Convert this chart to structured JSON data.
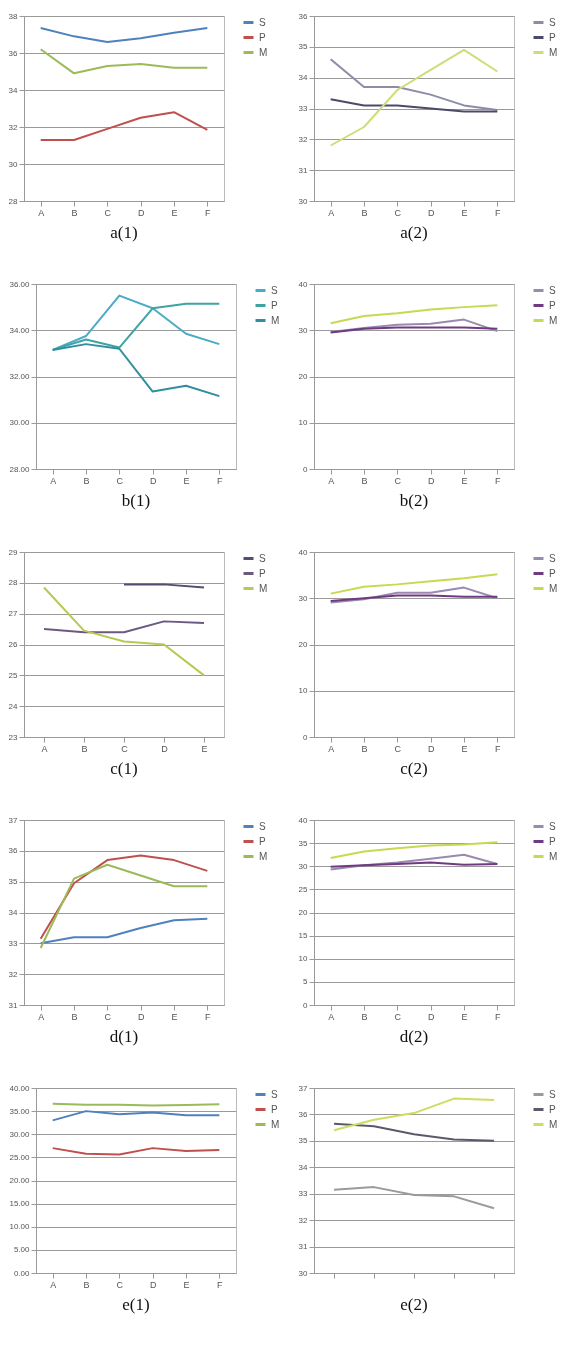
{
  "chart_data": [
    {
      "type": "line",
      "title": "a(1)",
      "categories": [
        "A",
        "B",
        "C",
        "D",
        "E",
        "F"
      ],
      "ylim": [
        28,
        38
      ],
      "yticks": [
        28,
        30,
        32,
        34,
        36,
        38
      ],
      "grid": "y",
      "legend": "right",
      "marker": "none",
      "series": [
        {
          "name": "S",
          "color": "#4f81bd",
          "values": [
            37.35,
            36.9,
            36.6,
            36.8,
            37.1,
            37.35
          ]
        },
        {
          "name": "P",
          "color": "#c0504d",
          "values": [
            31.3,
            31.3,
            31.9,
            32.5,
            32.8,
            31.85
          ]
        },
        {
          "name": "M",
          "color": "#9bbb59",
          "values": [
            36.2,
            34.9,
            35.3,
            35.4,
            35.2,
            35.2
          ]
        }
      ]
    },
    {
      "type": "line",
      "title": "a(2)",
      "categories": [
        "A",
        "B",
        "C",
        "D",
        "E",
        "F"
      ],
      "ylim": [
        30,
        36
      ],
      "yticks": [
        30,
        31,
        32,
        33,
        34,
        35,
        36
      ],
      "grid": "y",
      "legend": "right",
      "marker": "none",
      "series": [
        {
          "name": "S",
          "color": "#8c8ca8",
          "values": [
            34.6,
            33.7,
            33.7,
            33.45,
            33.1,
            32.95
          ]
        },
        {
          "name": "P",
          "color": "#4a4a6a",
          "values": [
            33.3,
            33.1,
            33.1,
            33.0,
            32.9,
            32.9
          ]
        },
        {
          "name": "M",
          "color": "#d0dc78",
          "values": [
            31.8,
            32.4,
            33.6,
            34.25,
            34.9,
            34.2
          ]
        }
      ]
    },
    {
      "type": "line",
      "title": "b(1)",
      "categories": [
        "A",
        "B",
        "C",
        "D",
        "E",
        "F"
      ],
      "ylim": [
        28,
        36
      ],
      "yticks": [
        {
          "value": 28,
          "label": "28.00"
        },
        {
          "value": 30,
          "label": "30.00"
        },
        {
          "value": 32,
          "label": "32.00"
        },
        {
          "value": 34,
          "label": "34.00"
        },
        {
          "value": 36,
          "label": "36.00"
        }
      ],
      "grid": "y",
      "legend": "right",
      "marker": "none",
      "series": [
        {
          "name": "S",
          "color": "#4bacc6",
          "values": [
            33.15,
            33.75,
            35.5,
            34.95,
            33.85,
            33.4
          ]
        },
        {
          "name": "P",
          "color": "#3fa3a3",
          "values": [
            33.15,
            33.6,
            33.25,
            34.95,
            35.15,
            35.15
          ]
        },
        {
          "name": "M",
          "color": "#2f8f9f",
          "values": [
            33.15,
            33.4,
            33.2,
            31.35,
            31.6,
            31.15
          ]
        }
      ]
    },
    {
      "type": "line",
      "title": "b(2)",
      "categories": [
        "A",
        "B",
        "C",
        "D",
        "E",
        "F"
      ],
      "ylim": [
        0,
        40
      ],
      "yticks": [
        0,
        10,
        20,
        30,
        40
      ],
      "grid": "y",
      "legend": "right",
      "marker": "none",
      "series": [
        {
          "name": "S",
          "color": "#9a8ab0",
          "values": [
            29.6,
            30.5,
            31.2,
            31.4,
            32.3,
            29.8
          ]
        },
        {
          "name": "P",
          "color": "#703a80",
          "values": [
            29.5,
            30.3,
            30.6,
            30.6,
            30.6,
            30.3
          ]
        },
        {
          "name": "M",
          "color": "#c8d850",
          "values": [
            31.5,
            33.1,
            33.7,
            34.5,
            35.0,
            35.4
          ]
        }
      ]
    },
    {
      "type": "line",
      "title": "c(1)",
      "categories": [
        "A",
        "B",
        "C",
        "D",
        "E"
      ],
      "ylim": [
        23,
        29
      ],
      "yticks": [
        23,
        24,
        25,
        26,
        27,
        28,
        29
      ],
      "grid": "y",
      "legend": "right",
      "marker": "none",
      "series": [
        {
          "name": "S",
          "color": "#505070",
          "values": [
            null,
            null,
            27.95,
            27.95,
            27.85
          ]
        },
        {
          "name": "P",
          "color": "#6a5a80",
          "values": [
            26.5,
            26.4,
            26.4,
            26.75,
            26.7
          ]
        },
        {
          "name": "M",
          "color": "#b8c850",
          "values": [
            27.85,
            26.45,
            26.1,
            26.0,
            25.0
          ]
        }
      ]
    },
    {
      "type": "line",
      "title": "c(2)",
      "categories": [
        "A",
        "B",
        "C",
        "D",
        "E",
        "F"
      ],
      "ylim": [
        0,
        40
      ],
      "yticks": [
        0,
        10,
        20,
        30,
        40
      ],
      "grid": "y",
      "legend": "right",
      "marker": "none",
      "series": [
        {
          "name": "S",
          "color": "#9a8ab0",
          "values": [
            29.1,
            29.8,
            31.2,
            31.2,
            32.3,
            30.0
          ]
        },
        {
          "name": "P",
          "color": "#703a80",
          "values": [
            29.4,
            30.0,
            30.6,
            30.6,
            30.3,
            30.3
          ]
        },
        {
          "name": "M",
          "color": "#c8d850",
          "values": [
            31.0,
            32.5,
            33.0,
            33.7,
            34.3,
            35.2
          ]
        }
      ]
    },
    {
      "type": "line",
      "title": "d(1)",
      "categories": [
        "A",
        "B",
        "C",
        "D",
        "E",
        "F"
      ],
      "ylim": [
        31,
        37
      ],
      "yticks": [
        31,
        32,
        33,
        34,
        35,
        36,
        37
      ],
      "grid": "y",
      "legend": "right",
      "marker": "none",
      "series": [
        {
          "name": "S",
          "color": "#4f81bd",
          "values": [
            33.0,
            33.2,
            33.2,
            33.5,
            33.75,
            33.8
          ]
        },
        {
          "name": "P",
          "color": "#c0504d",
          "values": [
            33.15,
            34.95,
            35.7,
            35.85,
            35.7,
            35.35
          ]
        },
        {
          "name": "M",
          "color": "#9bbb59",
          "values": [
            32.85,
            35.1,
            35.55,
            35.2,
            34.85,
            34.85
          ]
        }
      ]
    },
    {
      "type": "line",
      "title": "d(2)",
      "categories": [
        "A",
        "B",
        "C",
        "D",
        "E",
        "F"
      ],
      "ylim": [
        0,
        40
      ],
      "yticks": [
        0,
        5,
        10,
        15,
        20,
        25,
        30,
        35,
        40
      ],
      "grid": "y",
      "legend": "right",
      "marker": "none",
      "series": [
        {
          "name": "S",
          "color": "#9a8ab0",
          "values": [
            29.3,
            30.2,
            30.8,
            31.6,
            32.5,
            30.5
          ]
        },
        {
          "name": "P",
          "color": "#703a80",
          "values": [
            29.9,
            30.2,
            30.5,
            30.8,
            30.3,
            30.5
          ]
        },
        {
          "name": "M",
          "color": "#c8d850",
          "values": [
            31.8,
            33.2,
            33.9,
            34.5,
            34.7,
            35.2
          ]
        }
      ]
    },
    {
      "type": "line",
      "title": "e(1)",
      "categories": [
        "A",
        "B",
        "C",
        "D",
        "E",
        "F"
      ],
      "ylim": [
        0,
        40
      ],
      "yticks": [
        {
          "value": 0,
          "label": "0.00"
        },
        {
          "value": 5,
          "label": "5.00"
        },
        {
          "value": 10,
          "label": "10.00"
        },
        {
          "value": 15,
          "label": "15.00"
        },
        {
          "value": 20,
          "label": "20.00"
        },
        {
          "value": 25,
          "label": "25.00"
        },
        {
          "value": 30,
          "label": "30.00"
        },
        {
          "value": 35,
          "label": "35.00"
        },
        {
          "value": 40,
          "label": "40.00"
        }
      ],
      "grid": "y",
      "legend": "right",
      "marker": "none",
      "series": [
        {
          "name": "S",
          "color": "#4f81bd",
          "values": [
            33.0,
            35.0,
            34.3,
            34.7,
            34.1,
            34.1
          ]
        },
        {
          "name": "P",
          "color": "#c0504d",
          "values": [
            27.0,
            25.8,
            25.6,
            27.0,
            26.4,
            26.6
          ]
        },
        {
          "name": "M",
          "color": "#9bbb59",
          "values": [
            36.6,
            36.4,
            36.4,
            36.2,
            36.3,
            36.5
          ]
        }
      ]
    },
    {
      "type": "line",
      "title": "e(2)",
      "categories": [
        null,
        null,
        null,
        null,
        null
      ],
      "ylim": [
        30,
        37
      ],
      "yticks": [
        30,
        31,
        32,
        33,
        34,
        35,
        36,
        37
      ],
      "grid": "y",
      "legend": "right",
      "marker": "none",
      "series": [
        {
          "name": "S",
          "color": "#9a9a9a",
          "values": [
            33.15,
            33.25,
            32.95,
            32.9,
            32.45
          ]
        },
        {
          "name": "P",
          "color": "#5a5a6a",
          "values": [
            35.65,
            35.55,
            35.25,
            35.05,
            35.0
          ]
        },
        {
          "name": "M",
          "color": "#d0dc60",
          "values": [
            35.4,
            35.8,
            36.05,
            36.6,
            36.55
          ]
        }
      ]
    }
  ]
}
